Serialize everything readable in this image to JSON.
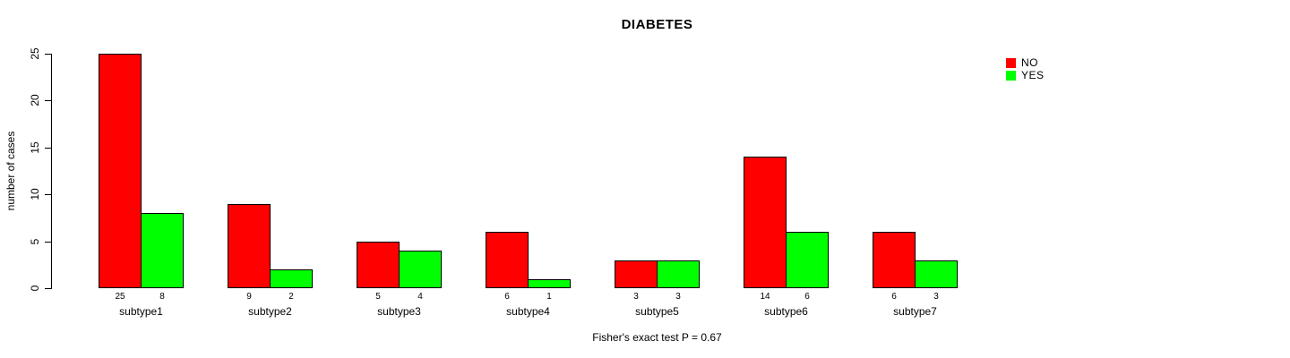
{
  "chart_data": {
    "type": "bar",
    "title": "DIABETES",
    "ylabel": "number of cases",
    "xlabel": "",
    "categories": [
      "subtype1",
      "subtype2",
      "subtype3",
      "subtype4",
      "subtype5",
      "subtype6",
      "subtype7"
    ],
    "series": [
      {
        "name": "NO",
        "color": "#ff0000",
        "values": [
          25,
          9,
          5,
          6,
          3,
          14,
          6
        ]
      },
      {
        "name": "YES",
        "color": "#00ff00",
        "values": [
          8,
          2,
          4,
          1,
          3,
          6,
          3
        ]
      }
    ],
    "yticks": [
      0,
      5,
      10,
      15,
      20,
      25
    ],
    "ylim": [
      0,
      25
    ],
    "grid": false,
    "bar_value_labels_shown": true,
    "bar_border_color": "#000000",
    "background_color": "#ffffff",
    "legend_position": "top-right",
    "legend": [
      {
        "label": "NO",
        "color": "#ff0000"
      },
      {
        "label": "YES",
        "color": "#00ff00"
      }
    ],
    "annotation": "Fisher's exact test P = 0.67"
  }
}
